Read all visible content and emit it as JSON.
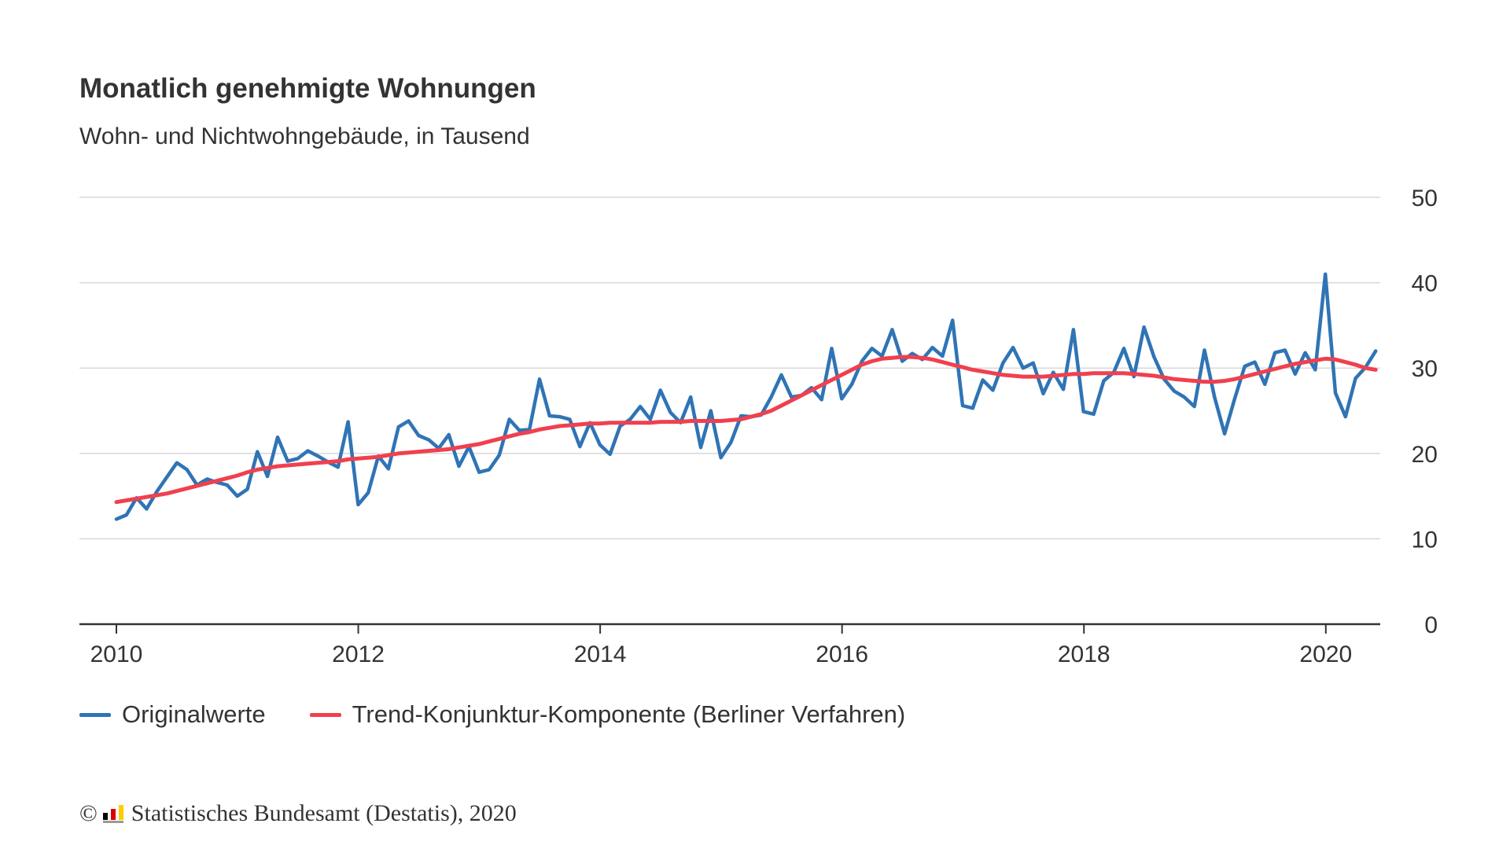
{
  "header": {
    "title": "Monatlich genehmigte Wohnungen",
    "subtitle": "Wohn- und Nichtwohngebäude, in Tausend"
  },
  "legend": {
    "series_1": "Originalwerte",
    "series_2": "Trend-Konjunktur-Komponente (Berliner Verfahren)"
  },
  "footer": {
    "copyright_symbol": "©",
    "source": "Statistisches Bundesamt (Destatis), 2020"
  },
  "colors": {
    "original": "#2f74b5",
    "trend": "#f0404e",
    "grid": "#d9d9d9",
    "axis": "#333333"
  },
  "chart_data": {
    "type": "line",
    "title": "Monatlich genehmigte Wohnungen",
    "subtitle": "Wohn- und Nichtwohngebäude, in Tausend",
    "x_ticks": [
      "2010",
      "2012",
      "2014",
      "2016",
      "2018",
      "2020"
    ],
    "y_ticks": [
      "0",
      "10",
      "20",
      "30",
      "40",
      "50"
    ],
    "xlim": [
      2010.0,
      2020.45
    ],
    "ylim": [
      0,
      50
    ],
    "grid": true,
    "legend_position": "bottom-left",
    "x_start": 2010.0,
    "x_step": 0.0833,
    "series": [
      {
        "name": "Originalwerte",
        "values": [
          12.3,
          12.8,
          14.8,
          13.5,
          15.5,
          17.2,
          18.9,
          18.1,
          16.3,
          17.0,
          16.6,
          16.3,
          15.0,
          15.8,
          20.2,
          17.3,
          21.9,
          19.1,
          19.4,
          20.3,
          19.7,
          19.0,
          18.4,
          23.7,
          14.0,
          15.4,
          19.7,
          18.2,
          23.1,
          23.8,
          22.1,
          21.6,
          20.6,
          22.2,
          18.5,
          20.8,
          17.8,
          18.1,
          19.8,
          24.0,
          22.7,
          22.8,
          28.7,
          24.4,
          24.3,
          24.0,
          20.8,
          23.6,
          21.0,
          19.9,
          23.2,
          24.0,
          25.5,
          24.0,
          27.4,
          24.8,
          23.6,
          26.6,
          20.7,
          25.0,
          19.5,
          21.3,
          24.4,
          24.3,
          24.5,
          26.6,
          29.2,
          26.6,
          26.8,
          27.7,
          26.3,
          32.3,
          26.4,
          28.1,
          30.8,
          32.3,
          31.4,
          34.5,
          30.8,
          31.7,
          31.0,
          32.4,
          31.4,
          35.6,
          25.6,
          25.3,
          28.6,
          27.4,
          30.6,
          32.4,
          30.0,
          30.6,
          27.0,
          29.5,
          27.5,
          34.5,
          24.9,
          24.6,
          28.5,
          29.5,
          32.3,
          29.0,
          34.8,
          31.3,
          28.7,
          27.3,
          26.6,
          25.5,
          32.1,
          26.6,
          22.3,
          26.4,
          30.2,
          30.7,
          28.1,
          31.8,
          32.1,
          29.3,
          31.8,
          29.8,
          41.0,
          27.1,
          24.3,
          28.8,
          30.1,
          32.0
        ]
      },
      {
        "name": "Trend-Konjunktur-Komponente (Berliner Verfahren)",
        "values": [
          14.3,
          14.5,
          14.7,
          14.9,
          15.1,
          15.3,
          15.6,
          15.9,
          16.2,
          16.5,
          16.8,
          17.1,
          17.4,
          17.8,
          18.1,
          18.3,
          18.5,
          18.6,
          18.7,
          18.8,
          18.9,
          19.0,
          19.1,
          19.3,
          19.4,
          19.5,
          19.6,
          19.8,
          20.0,
          20.1,
          20.2,
          20.3,
          20.4,
          20.5,
          20.7,
          20.9,
          21.1,
          21.4,
          21.7,
          22.0,
          22.3,
          22.5,
          22.8,
          23.0,
          23.2,
          23.3,
          23.4,
          23.5,
          23.5,
          23.6,
          23.6,
          23.6,
          23.6,
          23.6,
          23.7,
          23.7,
          23.7,
          23.8,
          23.8,
          23.8,
          23.8,
          23.9,
          24.0,
          24.3,
          24.6,
          25.0,
          25.6,
          26.2,
          26.8,
          27.4,
          28.0,
          28.6,
          29.2,
          29.8,
          30.4,
          30.8,
          31.1,
          31.2,
          31.3,
          31.3,
          31.2,
          31.0,
          30.7,
          30.4,
          30.1,
          29.8,
          29.6,
          29.4,
          29.2,
          29.1,
          29.0,
          29.0,
          29.0,
          29.1,
          29.2,
          29.3,
          29.3,
          29.4,
          29.4,
          29.4,
          29.4,
          29.3,
          29.2,
          29.1,
          28.9,
          28.7,
          28.6,
          28.5,
          28.4,
          28.4,
          28.5,
          28.7,
          29.0,
          29.3,
          29.6,
          29.9,
          30.2,
          30.5,
          30.7,
          30.9,
          31.1,
          31.0,
          30.7,
          30.4,
          30.0,
          29.8
        ]
      }
    ]
  }
}
